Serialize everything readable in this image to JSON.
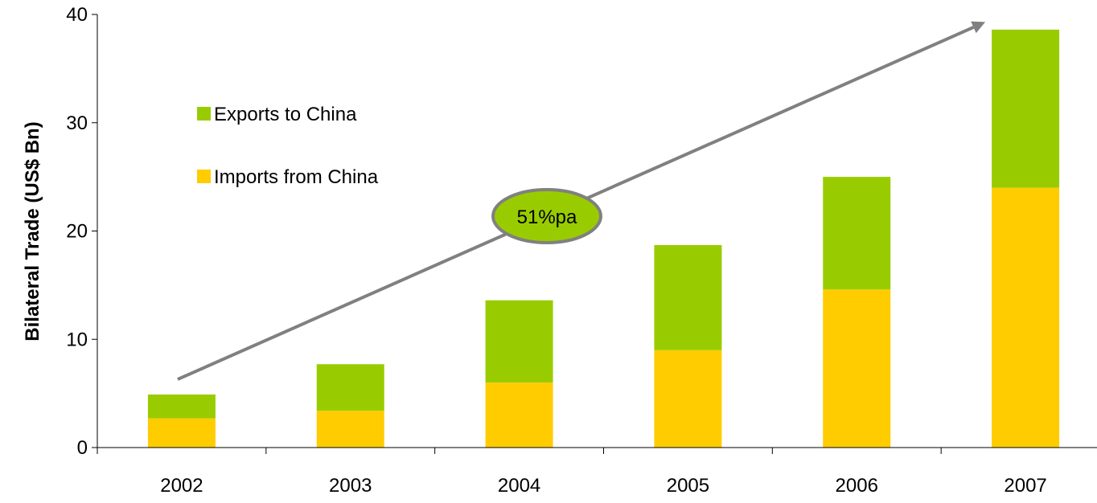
{
  "chart_data": {
    "type": "bar",
    "stacked": true,
    "categories": [
      "2002",
      "2003",
      "2004",
      "2005",
      "2006",
      "2007"
    ],
    "series": [
      {
        "name": "Imports from China",
        "color": "#FFCC00",
        "values": [
          2.7,
          3.4,
          6.0,
          9.0,
          14.6,
          24.0
        ]
      },
      {
        "name": "Exports to China",
        "color": "#99CC00",
        "values": [
          2.2,
          4.3,
          7.6,
          9.7,
          10.4,
          14.6
        ]
      }
    ],
    "title": "",
    "xlabel": "",
    "ylabel": "Bilateral Trade (US$ Bn)",
    "ylim": [
      0,
      40
    ],
    "yticks": [
      "0",
      "10",
      "20",
      "30",
      "40"
    ],
    "grid": false,
    "legend_position": "top-left",
    "legend_order": [
      "Exports to China",
      "Imports from China"
    ],
    "annotation": {
      "text": "51%pa",
      "fill_color": "#99CC00",
      "border_color": "#808080",
      "arrow_color": "#808080",
      "arrow_from": {
        "x": "2002",
        "y": 6.3
      },
      "arrow_to": {
        "x": "2007",
        "y": 39.3
      }
    }
  }
}
